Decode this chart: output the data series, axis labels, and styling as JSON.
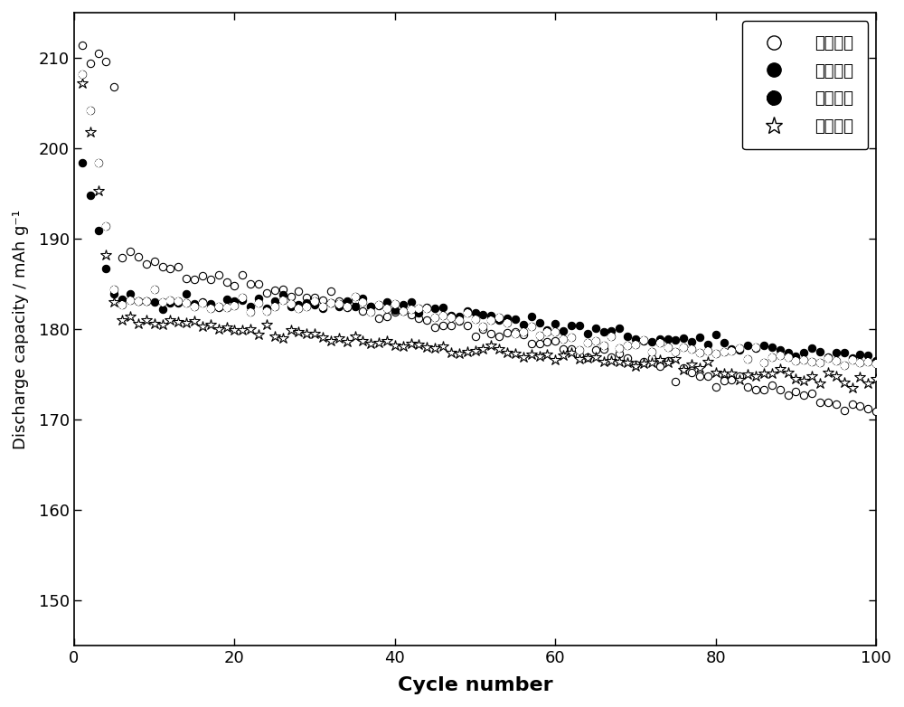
{
  "xlabel": "Cycle number",
  "ylabel": "Discharge capacity / mAh g⁻¹",
  "xlim": [
    0,
    100
  ],
  "ylim": [
    145,
    215
  ],
  "yticks": [
    150,
    160,
    170,
    180,
    190,
    200,
    210
  ],
  "xticks": [
    0,
    20,
    40,
    60,
    80,
    100
  ],
  "legend_labels": [
    "实施例一",
    "实施例二",
    "实施例三",
    "实施例四"
  ],
  "background_color": "#ffffff",
  "marker_size": 6
}
